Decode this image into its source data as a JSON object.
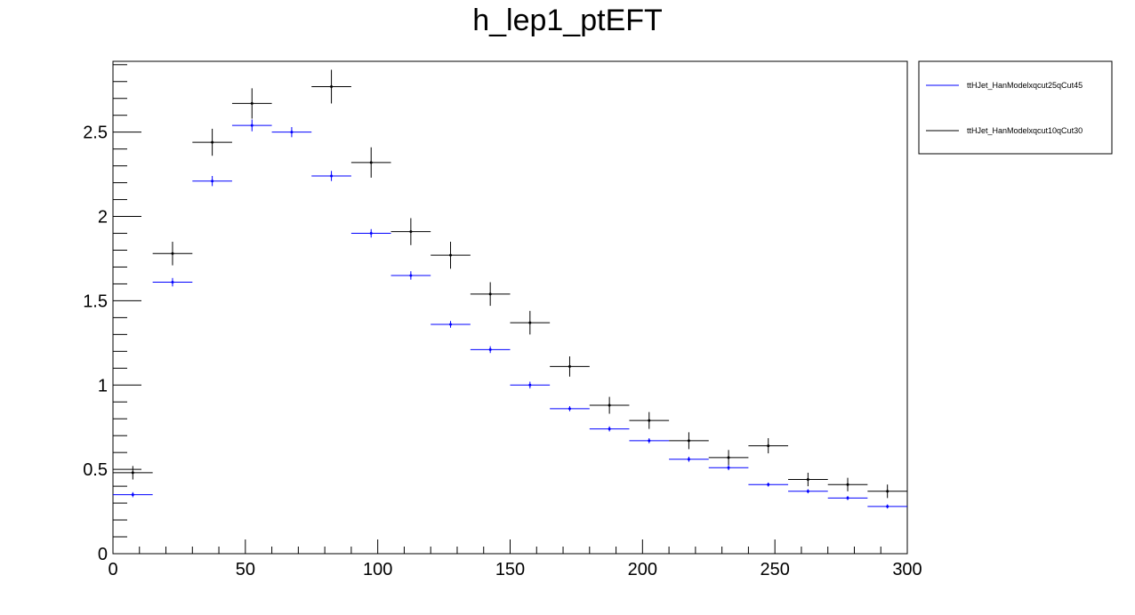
{
  "chart_data": {
    "type": "scatter",
    "title": "h_lep1_ptEFT",
    "xlabel": "",
    "ylabel": "",
    "xlim": [
      0,
      300
    ],
    "ylim": [
      0,
      2.92
    ],
    "xticks": [
      "0",
      "50",
      "100",
      "150",
      "200",
      "250",
      "300"
    ],
    "yticks": [
      "0",
      "0.5",
      "1",
      "1.5",
      "2",
      "2.5"
    ],
    "bin_width": 15,
    "x": [
      7.5,
      22.5,
      37.5,
      52.5,
      67.5,
      82.5,
      97.5,
      112.5,
      127.5,
      142.5,
      157.5,
      172.5,
      187.5,
      202.5,
      217.5,
      232.5,
      247.5,
      262.5,
      277.5,
      292.5
    ],
    "legend_position": "top-right",
    "grid": false,
    "series": [
      {
        "name": "ttHJet_HanModelxqcut25qCut45",
        "color": "#0000ff",
        "values": [
          0.35,
          1.61,
          2.21,
          2.54,
          2.5,
          2.24,
          1.9,
          1.65,
          1.36,
          1.21,
          1.0,
          0.86,
          0.74,
          0.67,
          0.56,
          0.51,
          0.41,
          0.37,
          0.33,
          0.28
        ],
        "errors": [
          0.015,
          0.025,
          0.03,
          0.035,
          0.03,
          0.03,
          0.025,
          0.025,
          0.02,
          0.02,
          0.02,
          0.015,
          0.015,
          0.015,
          0.015,
          0.015,
          0.012,
          0.012,
          0.012,
          0.012
        ]
      },
      {
        "name": "ttHJet_HanModelxqcut10qCut30",
        "color": "#000000",
        "values": [
          0.48,
          1.78,
          2.44,
          2.67,
          null,
          2.77,
          2.32,
          1.91,
          1.77,
          1.54,
          1.37,
          1.11,
          0.88,
          0.79,
          0.67,
          0.57,
          0.64,
          0.44,
          0.41,
          0.37
        ],
        "errors": [
          0.04,
          0.07,
          0.08,
          0.09,
          0,
          0.1,
          0.09,
          0.08,
          0.08,
          0.07,
          0.07,
          0.06,
          0.05,
          0.05,
          0.05,
          0.045,
          0.045,
          0.04,
          0.04,
          0.04
        ]
      }
    ]
  }
}
